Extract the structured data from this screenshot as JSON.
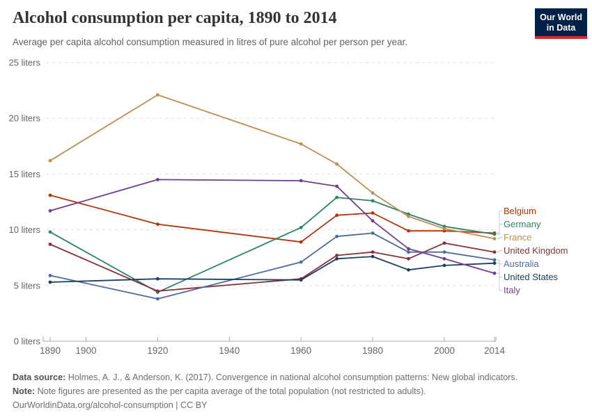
{
  "header": {
    "title": "Alcohol consumption per capita, 1890 to 2014",
    "subtitle": "Average per capita alcohol consumption measured in litres of pure alcohol per person per year.",
    "logo": {
      "line1": "Our World",
      "line2": "in Data",
      "bg_color": "#002147",
      "bar_color": "#D22D23"
    }
  },
  "chart_data": {
    "type": "line",
    "title": "Alcohol consumption per capita, 1890 to 2014",
    "xlabel": "",
    "ylabel": "liters",
    "x": [
      1890,
      1920,
      1960,
      1970,
      1980,
      1990,
      2000,
      2014
    ],
    "x_ticks": [
      1890,
      1900,
      1920,
      1940,
      1960,
      1980,
      2000,
      2014
    ],
    "y_ticks": [
      0,
      5,
      10,
      15,
      20,
      25
    ],
    "y_tick_suffix": " liters",
    "ylim": [
      0,
      25
    ],
    "xlim": [
      1888,
      2014
    ],
    "grid": "horizontal-dashed",
    "legend_position": "right",
    "series": [
      {
        "name": "Belgium",
        "color": "#B13507",
        "values": [
          13.1,
          10.5,
          8.9,
          11.3,
          11.5,
          9.9,
          9.9,
          9.7
        ]
      },
      {
        "name": "Germany",
        "color": "#2C8465",
        "values": [
          9.8,
          4.4,
          10.2,
          12.9,
          12.6,
          11.4,
          10.3,
          9.6
        ]
      },
      {
        "name": "France",
        "color": "#BE8E53",
        "values": [
          16.2,
          22.1,
          17.7,
          15.9,
          13.3,
          11.2,
          10.1,
          9.2
        ]
      },
      {
        "name": "United Kingdom",
        "color": "#883039",
        "values": [
          8.7,
          4.5,
          5.6,
          7.7,
          8.0,
          7.4,
          8.8,
          8.0
        ]
      },
      {
        "name": "Australia",
        "color": "#4C6A9C",
        "values": [
          5.9,
          3.8,
          7.1,
          9.4,
          9.7,
          8.0,
          8.0,
          7.3
        ]
      },
      {
        "name": "United States",
        "color": "#1D3D63",
        "values": [
          5.3,
          5.6,
          5.5,
          7.4,
          7.6,
          6.4,
          6.8,
          7.0
        ]
      },
      {
        "name": "Italy",
        "color": "#6D3E91",
        "values": [
          11.7,
          14.5,
          14.4,
          13.9,
          10.8,
          8.3,
          7.4,
          6.1
        ]
      }
    ]
  },
  "footer": {
    "source_label": "Data source:",
    "source_text": " Holmes, A. J., & Anderson, K. (2017). Convergence in national alcohol consumption patterns: New global indicators.",
    "note_label": "Note:",
    "note_text": " Note figures are presented as the per capita average of the total population (not restricted to adults).",
    "link_text": "OurWorldinData.org/alcohol-consumption | CC BY"
  }
}
